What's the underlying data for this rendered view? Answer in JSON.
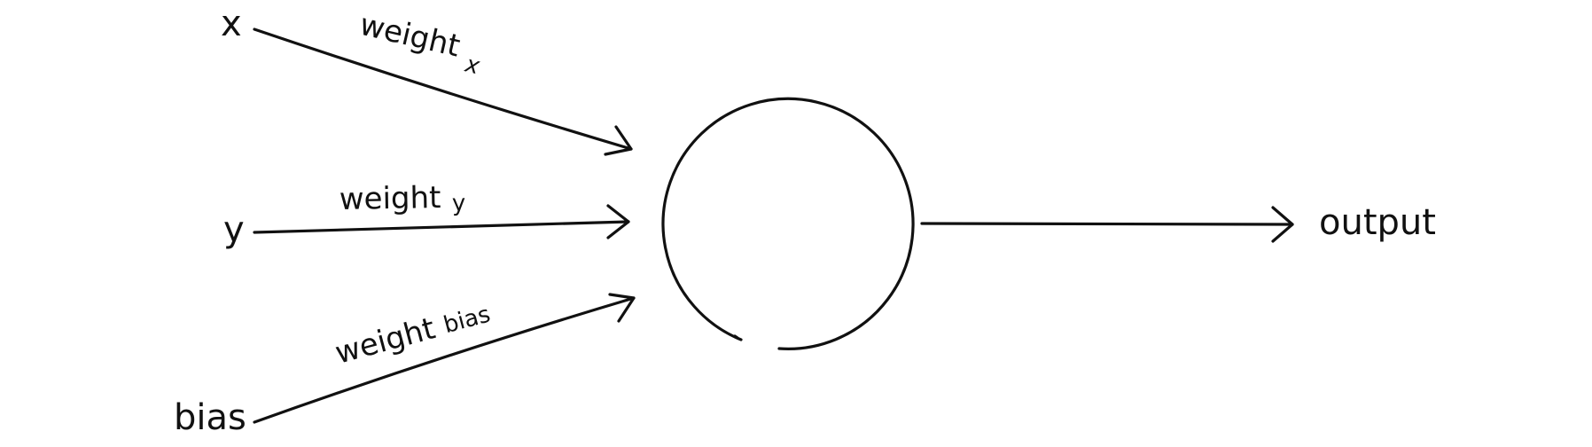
{
  "inputs": {
    "x": "x",
    "y": "y",
    "bias": "bias"
  },
  "weights": {
    "x": {
      "main": "weight",
      "sub": "x"
    },
    "y": {
      "main": "weight",
      "sub": "y"
    },
    "bias": {
      "main": "weight",
      "sub": "bias"
    }
  },
  "output": {
    "label": "output"
  },
  "colors": {
    "ink": "#111111",
    "background": "#ffffff"
  }
}
